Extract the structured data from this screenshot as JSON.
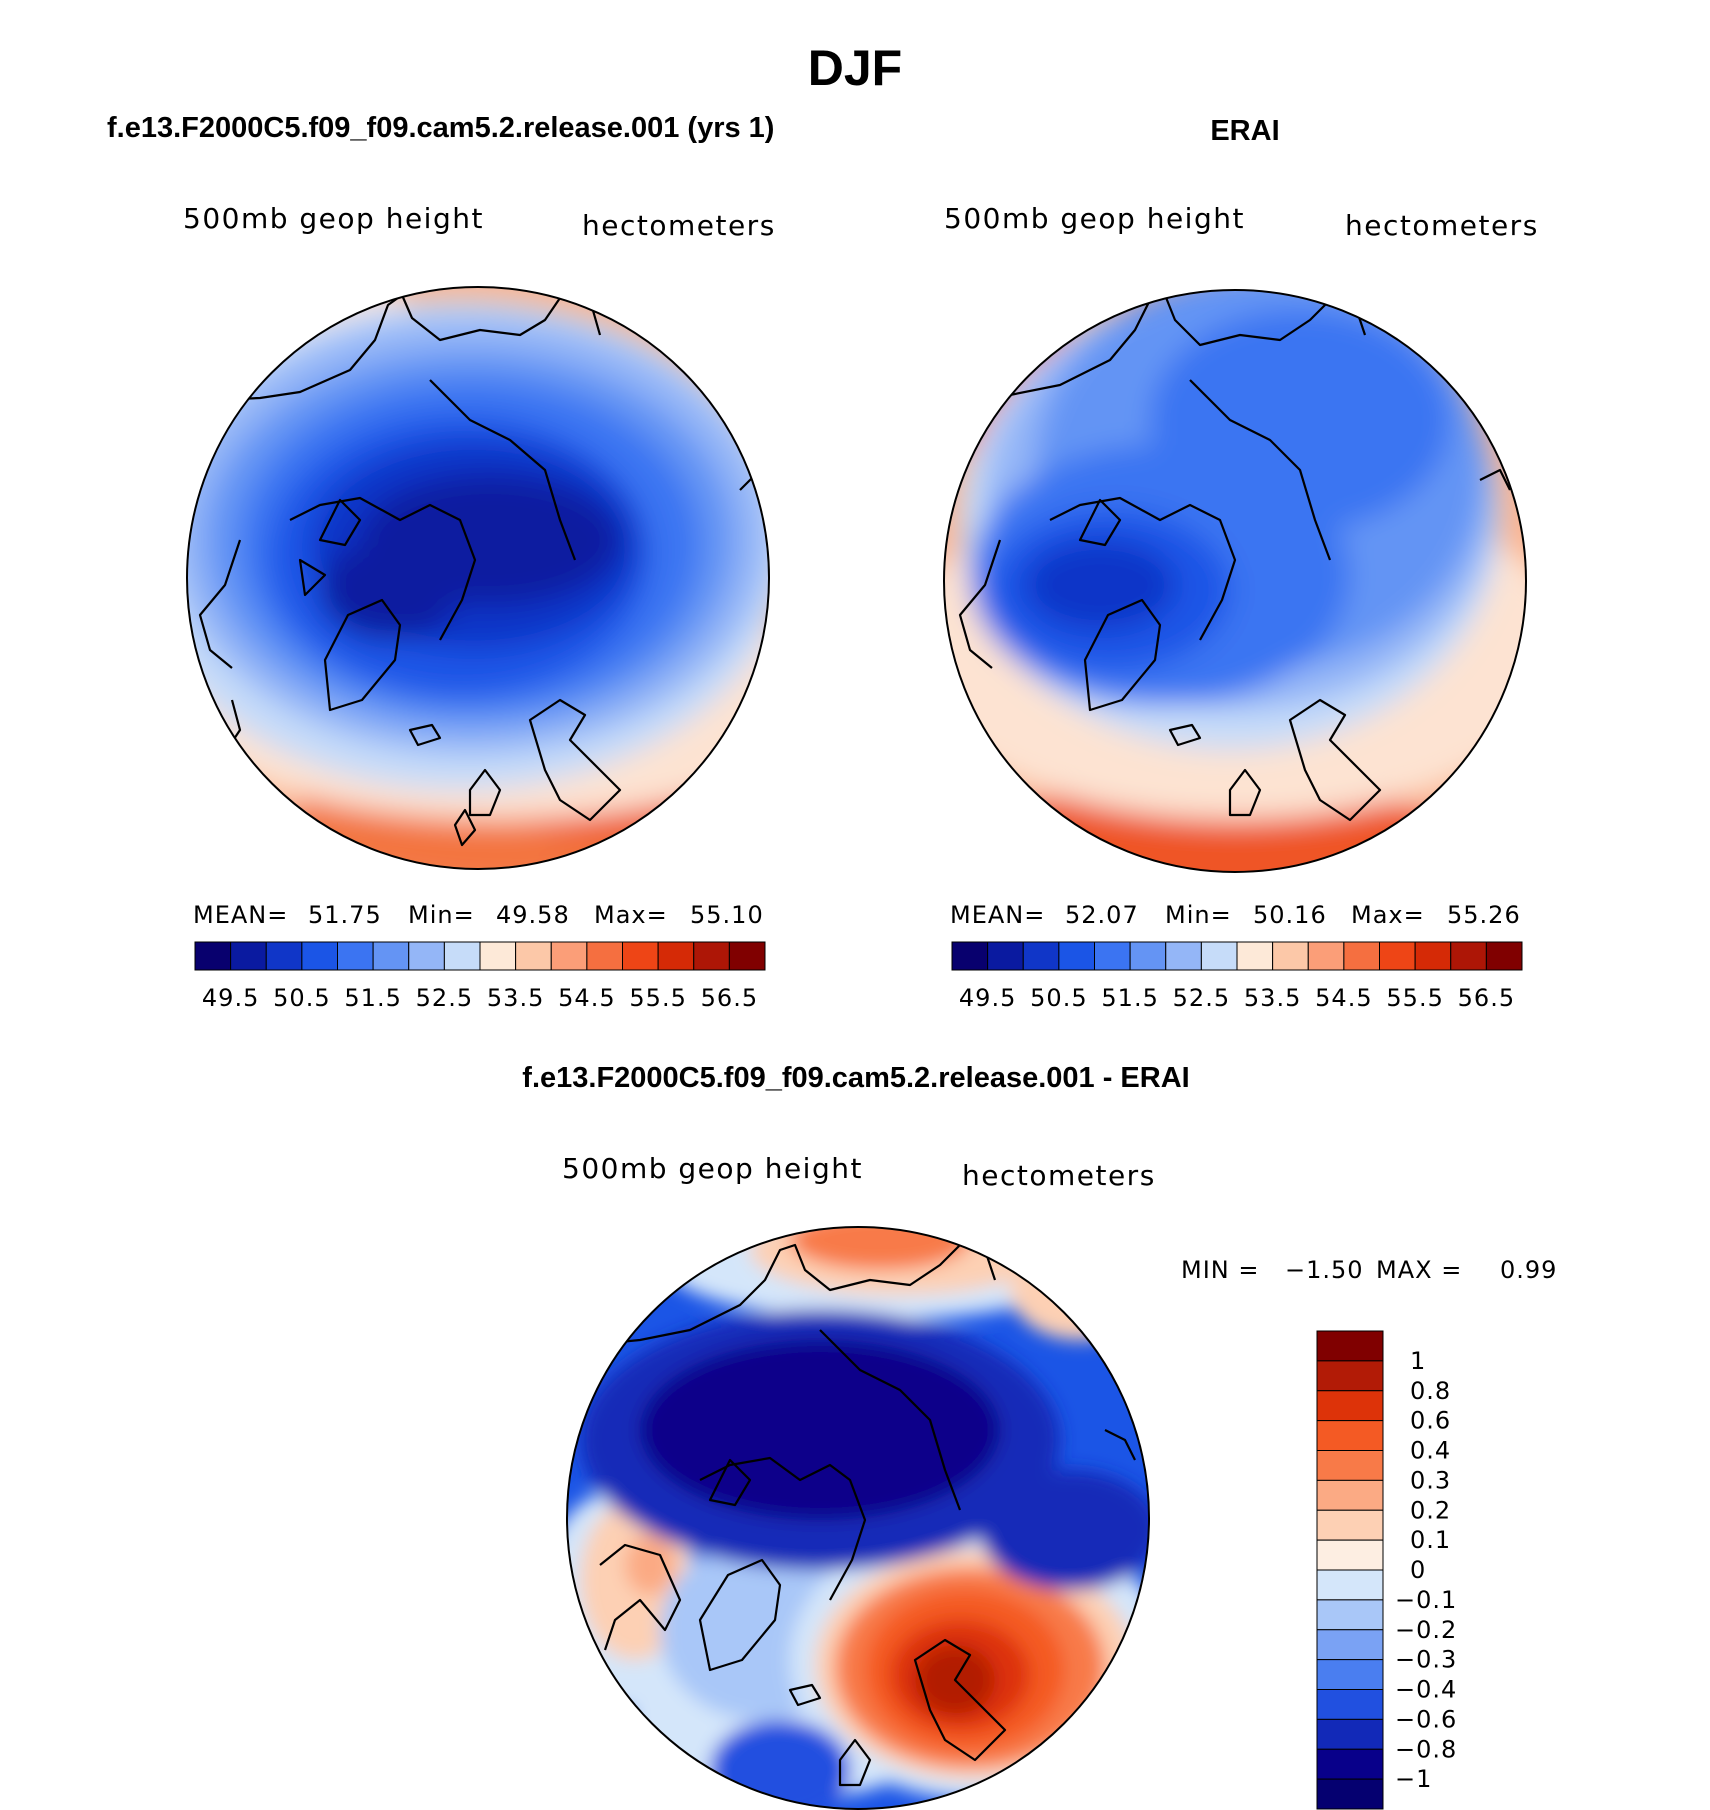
{
  "figure": {
    "title": "DJF"
  },
  "chart_data": [
    {
      "type": "heatmap",
      "projection": "north-polar-stereographic",
      "panel_title": "f.e13.F2000C5.f09_f09.cam5.2.release.001 (yrs 1)",
      "variable": "500mb geop height",
      "units": "hectometers",
      "stats": {
        "mean_label": "MEAN=",
        "mean": "51.75",
        "min_label": "Min=",
        "min": "49.58",
        "max_label": "Max=",
        "max": "55.10"
      },
      "colorbar": {
        "orientation": "horizontal",
        "tick_labels": [
          "49.5",
          "50.5",
          "51.5",
          "52.5",
          "53.5",
          "54.5",
          "55.5",
          "56.5"
        ],
        "levels": [
          49.5,
          50,
          50.5,
          51,
          51.5,
          52,
          52.5,
          53,
          53.5,
          54,
          54.5,
          55,
          55.5,
          56,
          56.5
        ],
        "colors": [
          "#08006e",
          "#0a1aa0",
          "#1036c8",
          "#1b55e6",
          "#3b74f2",
          "#6494f4",
          "#94b6f7",
          "#c6dcf9",
          "#fde9d8",
          "#fcc8a8",
          "#fb9e78",
          "#f56f40",
          "#ee4516",
          "#d52a06",
          "#ad1606",
          "#800000"
        ]
      }
    },
    {
      "type": "heatmap",
      "projection": "north-polar-stereographic",
      "panel_title": "ERAI",
      "variable": "500mb geop height",
      "units": "hectometers",
      "stats": {
        "mean_label": "MEAN=",
        "mean": "52.07",
        "min_label": "Min=",
        "min": "50.16",
        "max_label": "Max=",
        "max": "55.26"
      },
      "colorbar": {
        "orientation": "horizontal",
        "tick_labels": [
          "49.5",
          "50.5",
          "51.5",
          "52.5",
          "53.5",
          "54.5",
          "55.5",
          "56.5"
        ],
        "levels": [
          49.5,
          50,
          50.5,
          51,
          51.5,
          52,
          52.5,
          53,
          53.5,
          54,
          54.5,
          55,
          55.5,
          56,
          56.5
        ],
        "colors": [
          "#08006e",
          "#0a1aa0",
          "#1036c8",
          "#1b55e6",
          "#3b74f2",
          "#6494f4",
          "#94b6f7",
          "#c6dcf9",
          "#fde9d8",
          "#fcc8a8",
          "#fb9e78",
          "#f56f40",
          "#ee4516",
          "#d52a06",
          "#ad1606",
          "#800000"
        ]
      }
    },
    {
      "type": "heatmap",
      "projection": "north-polar-stereographic",
      "panel_title": "f.e13.F2000C5.f09_f09.cam5.2.release.001 - ERAI",
      "variable": "500mb geop height",
      "units": "hectometers",
      "stats": {
        "min_label": "MIN =",
        "min": "−1.50",
        "max_label": "MAX =",
        "max": "0.99"
      },
      "colorbar": {
        "orientation": "vertical",
        "tick_labels": [
          "1",
          "0.8",
          "0.6",
          "0.4",
          "0.3",
          "0.2",
          "0.1",
          "0",
          "−0.1",
          "−0.2",
          "−0.3",
          "−0.4",
          "−0.6",
          "−0.8",
          "−1"
        ],
        "levels": [
          1,
          0.8,
          0.6,
          0.4,
          0.3,
          0.2,
          0.1,
          0,
          -0.1,
          -0.2,
          -0.3,
          -0.4,
          -0.6,
          -0.8,
          -1
        ],
        "colors_top_to_bottom": [
          "#800000",
          "#b21b06",
          "#dd3309",
          "#f45a24",
          "#f87a48",
          "#fbaa84",
          "#fdd0b4",
          "#fdeee2",
          "#d4e6fa",
          "#a9c7f8",
          "#7aa2f4",
          "#4a7ef0",
          "#2150e0",
          "#1229b8",
          "#08008a",
          "#050070"
        ]
      }
    }
  ]
}
